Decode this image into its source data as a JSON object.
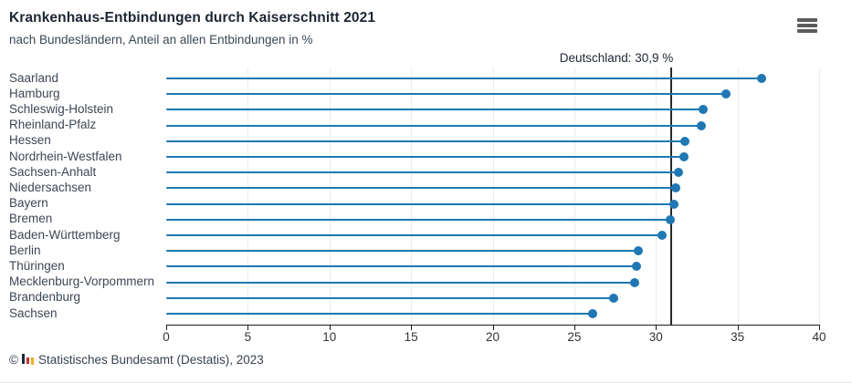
{
  "header": {
    "title": "Krankenhaus-Entbindungen durch Kaiserschnitt 2021",
    "subtitle": "nach Bundesländern, Anteil an allen Entbindungen in %"
  },
  "chart_data": {
    "type": "bar",
    "variant": "lollipop",
    "orientation": "horizontal",
    "title": "Krankenhaus-Entbindungen durch Kaiserschnitt 2021",
    "subtitle": "nach Bundesländern, Anteil an allen Entbindungen in %",
    "categories": [
      "Saarland",
      "Hamburg",
      "Schleswig-Holstein",
      "Rheinland-Pfalz",
      "Hessen",
      "Nordrhein-Westfalen",
      "Sachsen-Anhalt",
      "Niedersachsen",
      "Bayern",
      "Bremen",
      "Baden-Württemberg",
      "Berlin",
      "Thüringen",
      "Mecklenburg-Vorpommern",
      "Brandenburg",
      "Sachsen"
    ],
    "values": [
      36.5,
      34.3,
      32.9,
      32.8,
      31.8,
      31.7,
      31.4,
      31.2,
      31.1,
      30.9,
      30.4,
      28.9,
      28.8,
      28.7,
      27.4,
      26.1
    ],
    "xlabel": "",
    "ylabel": "",
    "xlim": [
      0,
      40
    ],
    "xticks": [
      0,
      5,
      10,
      15,
      20,
      25,
      30,
      35,
      40
    ],
    "grid": true,
    "reference_line": {
      "value": 30.9,
      "label": "Deutschland: 30,9 %",
      "color": "#2a2a2a"
    },
    "accent_color": "#1f77b4"
  },
  "footer": {
    "copyright_symbol": "©",
    "source": "Statistisches Bundesamt (Destatis), 2023",
    "logo": "destatis-bars-icon",
    "logo_colors": {
      "navy": "#1c2a3a",
      "red": "#c4322e",
      "gold": "#f0b11e"
    }
  }
}
